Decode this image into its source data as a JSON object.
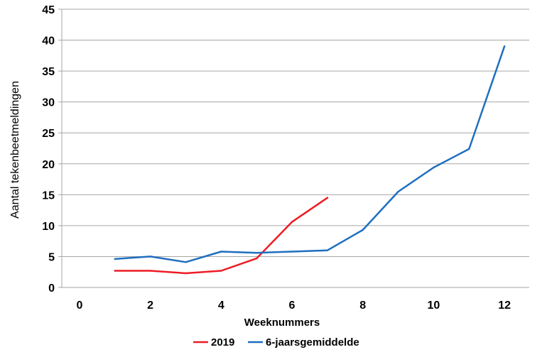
{
  "chart_data": {
    "type": "line",
    "xlabel": "Weeknummers",
    "ylabel": "Aantal tekenbeetmeldingen",
    "xlim": [
      -0.5,
      12.7
    ],
    "ylim": [
      0,
      45
    ],
    "xticks": [
      0,
      2,
      4,
      6,
      8,
      10,
      12
    ],
    "yticks": [
      0,
      5,
      10,
      15,
      20,
      25,
      30,
      35,
      40,
      45
    ],
    "grid": "horizontal",
    "legend_position": "bottom",
    "series": [
      {
        "name": "2019",
        "color": "#ee1c24",
        "x": [
          1,
          2,
          3,
          4,
          5,
          6,
          7
        ],
        "y": [
          2.7,
          2.7,
          2.3,
          2.7,
          4.7,
          10.6,
          14.5
        ]
      },
      {
        "name": "6-jaarsgemiddelde",
        "color": "#1f6fbf",
        "x": [
          1,
          2,
          3,
          4,
          5,
          6,
          7,
          8,
          9,
          10,
          11,
          12
        ],
        "y": [
          4.6,
          5.0,
          4.1,
          5.8,
          5.6,
          5.8,
          6.0,
          9.3,
          15.5,
          19.4,
          22.4,
          39.0
        ]
      }
    ]
  }
}
